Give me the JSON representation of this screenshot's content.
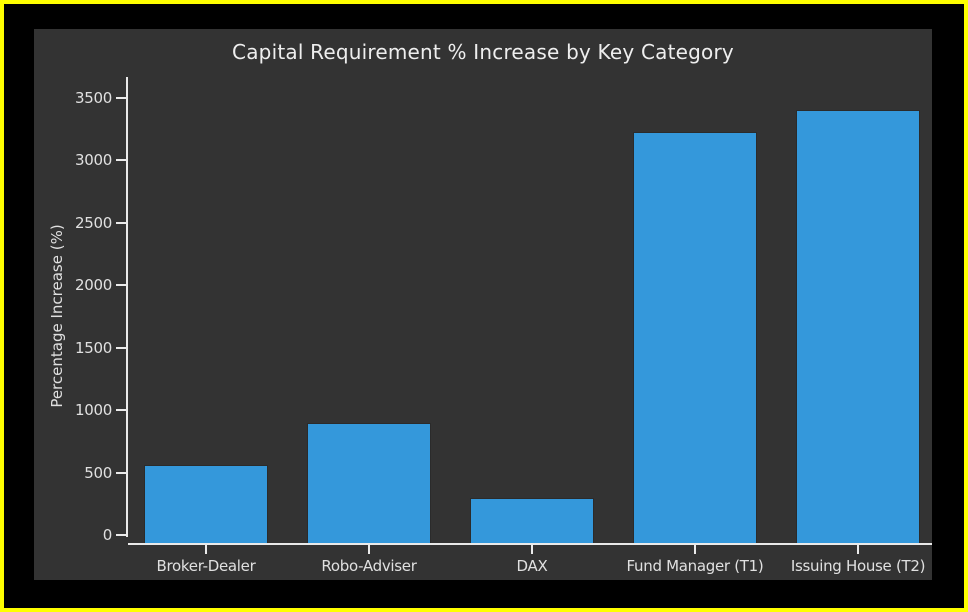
{
  "frame": {
    "border_color": "#ffff00",
    "outer_background": "#000000"
  },
  "chart_data": {
    "type": "bar",
    "title": "Capital Requirement % Increase by Key Category",
    "xlabel": "",
    "ylabel": "Percentage Increase (%)",
    "categories": [
      "Broker-Dealer",
      "Robo-Adviser",
      "DAX",
      "Fund Manager (T1)",
      "Issuing House (T2)"
    ],
    "values": [
      560,
      900,
      300,
      3230,
      3400
    ],
    "ylim": [
      0,
      3500
    ],
    "yticks": [
      0,
      500,
      1000,
      1500,
      2000,
      2500,
      3000,
      3500
    ],
    "grid": false,
    "legend": "none",
    "panel_background": "#333333",
    "bar_color": "#3498db",
    "bar_edge_color": "#2b2b2b",
    "axis_color": "#eaeaea",
    "text_color": "#e0e0e0",
    "title_color": "#eeeeee"
  }
}
